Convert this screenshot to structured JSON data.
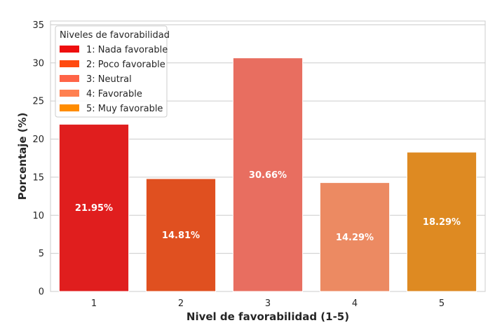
{
  "chart_data": {
    "type": "bar",
    "categories": [
      "1",
      "2",
      "3",
      "4",
      "5"
    ],
    "values": [
      21.95,
      14.81,
      30.66,
      14.29,
      18.29
    ],
    "value_labels": [
      "21.95%",
      "14.81%",
      "30.66%",
      "14.29%",
      "18.29%"
    ],
    "colors": [
      "#e01e1e",
      "#e05020",
      "#e86e60",
      "#ec8a62",
      "#de8a22"
    ],
    "xlabel": "Nivel de favorabilidad (1-5)",
    "ylabel": "Porcentaje (%)",
    "ylim": [
      0,
      35.5
    ],
    "yticks": [
      0,
      5,
      10,
      15,
      20,
      25,
      30,
      35
    ],
    "grid": true,
    "legend": {
      "title": "Niveles de favorabilidad",
      "placement": "top-left",
      "entries": [
        {
          "label": "1: Nada favorable",
          "color": "#ee0e0e"
        },
        {
          "label": "2: Poco favorable",
          "color": "#ff4a10"
        },
        {
          "label": "3: Neutral",
          "color": "#ff6447"
        },
        {
          "label": "4: Favorable",
          "color": "#ff8050"
        },
        {
          "label": "5: Muy favorable",
          "color": "#ff8c00"
        }
      ]
    }
  }
}
